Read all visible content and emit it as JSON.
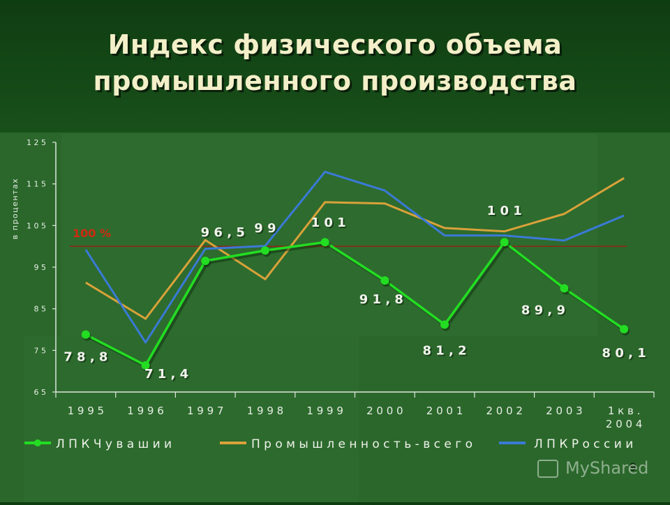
{
  "page": {
    "title_line1": "Индекс физического объема",
    "title_line2": "промышленного производства",
    "page_number": "9",
    "watermark": "MyShared"
  },
  "chart_data": {
    "type": "line",
    "title": "Индекс физического объема промышленного производства",
    "ylabel": "в процентах",
    "xlabel": "",
    "ylim": [
      65,
      125
    ],
    "yticks": [
      65,
      75,
      85,
      95,
      105,
      115,
      125
    ],
    "categories": [
      "1995",
      "1996",
      "1997",
      "1998",
      "1999",
      "2000",
      "2001",
      "2002",
      "2003",
      "1 кв. 2004"
    ],
    "category_labels": [
      "1 9 9 5",
      "1 9 9 6",
      "1 9 9 7",
      "1 9 9 8",
      "1 9 9 9",
      "2 0 0 0",
      "2 0 0 1",
      "2 0 0 2",
      "2 0 0 3",
      "1  к в .\n2 0 0 4"
    ],
    "reference_line": {
      "value": 100,
      "label": "100 %",
      "color": "#8b2a14"
    },
    "grid": false,
    "legend_position": "bottom",
    "series": [
      {
        "name": "ЛПК Чувашии",
        "legend_label": "Л П К   Ч у в а ш и и",
        "color": "#22dd22",
        "markers": true,
        "values": [
          78.8,
          71.4,
          96.5,
          99,
          101,
          91.8,
          81.2,
          101,
          89.9,
          80.1
        ],
        "data_labels": [
          "7 8 , 8",
          "7 1 , 4",
          "9 6 , 5",
          "9 9",
          "1 0 1",
          "9 1 , 8",
          "8 1 , 2",
          "1 0 1",
          "8 9 , 9",
          "8 0 , 1"
        ]
      },
      {
        "name": "Промышленность - всего",
        "legend_label": "П р о м ы ш л е н н о с т ь  -  в с е г о",
        "color": "#d9a23a",
        "markers": false,
        "values": [
          91.3,
          82.6,
          101.5,
          92.1,
          110.6,
          110.3,
          104.4,
          103.6,
          107.8,
          116.4
        ]
      },
      {
        "name": "ЛПК России",
        "legend_label": "Л П К   Р о с с и и",
        "color": "#3a7ad6",
        "markers": false,
        "values": [
          99.2,
          76.9,
          99.4,
          100.1,
          117.9,
          113.4,
          102.6,
          102.6,
          101.4,
          107.4
        ]
      }
    ]
  }
}
